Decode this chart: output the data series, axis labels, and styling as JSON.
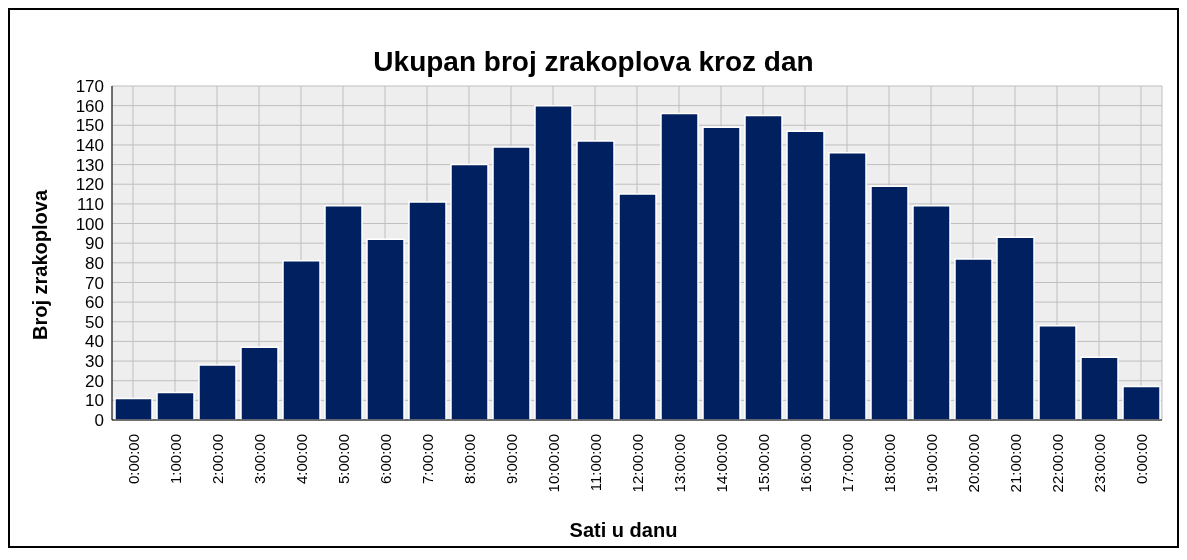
{
  "chart_data": {
    "type": "bar",
    "title": "Ukupan broj zrakoplova kroz dan",
    "xlabel": "Sati u danu",
    "ylabel": "Broj zrakoplova",
    "categories": [
      "0:00:00",
      "1:00:00",
      "2:00:00",
      "3:00:00",
      "4:00:00",
      "5:00:00",
      "6:00:00",
      "7:00:00",
      "8:00:00",
      "9:00:00",
      "10:00:00",
      "11:00:00",
      "12:00:00",
      "13:00:00",
      "14:00:00",
      "15:00:00",
      "16:00:00",
      "17:00:00",
      "18:00:00",
      "19:00:00",
      "20:00:00",
      "21:00:00",
      "22:00:00",
      "23:00:00",
      "0:00:00"
    ],
    "values": [
      11,
      14,
      28,
      37,
      81,
      109,
      92,
      111,
      130,
      139,
      160,
      142,
      115,
      156,
      149,
      155,
      147,
      136,
      119,
      109,
      82,
      93,
      48,
      32,
      17
    ],
    "color": "#002060",
    "ylim": [
      0,
      170
    ],
    "yticks": [
      0,
      10,
      20,
      30,
      40,
      50,
      60,
      70,
      80,
      90,
      100,
      110,
      120,
      130,
      140,
      150,
      160,
      170
    ],
    "grid": true,
    "legend": false
  }
}
